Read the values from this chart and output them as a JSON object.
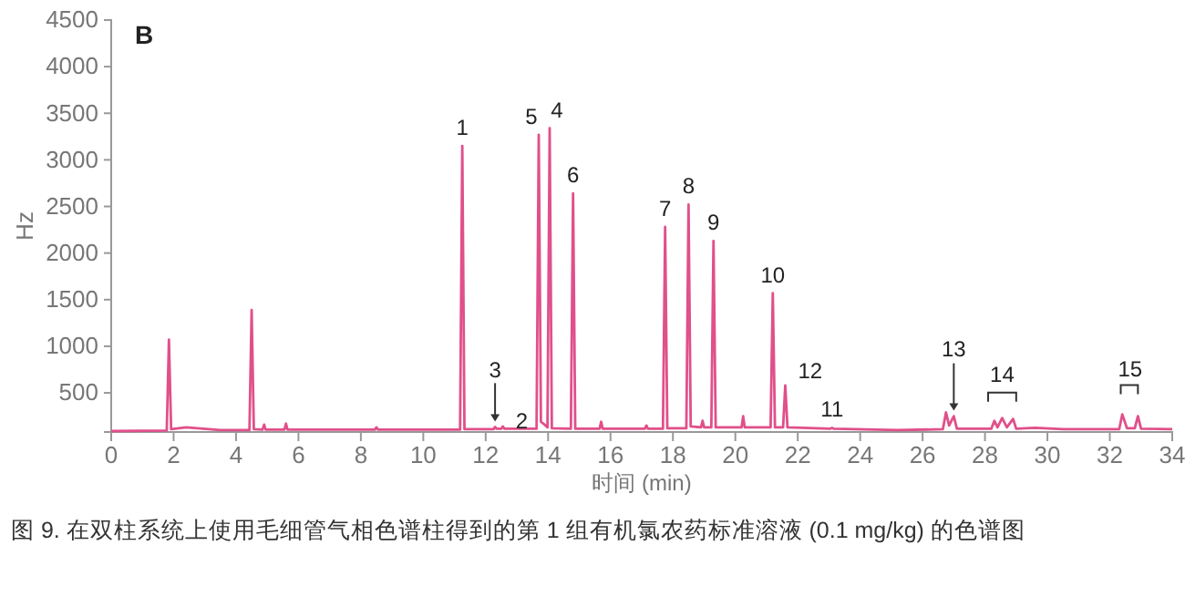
{
  "chart_data": {
    "type": "line",
    "title": "B",
    "xlabel": "时间 (min)",
    "ylabel": "Hz",
    "xlim": [
      0,
      34
    ],
    "xticks": [
      0,
      2,
      4,
      6,
      8,
      10,
      12,
      14,
      16,
      18,
      20,
      22,
      24,
      26,
      28,
      30,
      32,
      34
    ],
    "ylim": [
      80,
      4500
    ],
    "yticks": [
      500,
      1000,
      1500,
      2000,
      2500,
      3000,
      3500,
      4000,
      4500
    ],
    "marker": "none",
    "line_style": "solid",
    "series": [
      {
        "color": "#e0508a",
        "x": [
          0,
          1.78,
          1.85,
          1.92,
          2.4,
          3.5,
          4.43,
          4.5,
          4.57,
          4.85,
          4.9,
          4.95,
          5.55,
          5.6,
          5.65,
          8.45,
          8.5,
          8.55,
          11.18,
          11.25,
          11.32,
          12.25,
          12.3,
          12.35,
          12.5,
          12.55,
          12.6,
          13.63,
          13.7,
          13.77,
          13.85,
          13.98,
          14.05,
          14.12,
          14.73,
          14.8,
          14.87,
          15.65,
          15.7,
          15.75,
          17.1,
          17.15,
          17.2,
          17.68,
          17.75,
          17.82,
          18.43,
          18.5,
          18.57,
          18.9,
          18.95,
          19.0,
          19.23,
          19.3,
          19.37,
          20.2,
          20.25,
          20.3,
          21.13,
          21.2,
          21.27,
          21.53,
          21.6,
          21.67,
          23.05,
          23.1,
          23.15,
          25.2,
          26.65,
          26.75,
          26.85,
          27.0,
          27.1,
          28.2,
          28.3,
          28.4,
          28.55,
          28.7,
          28.9,
          29.0,
          29.6,
          30.5,
          32.3,
          32.4,
          32.55,
          32.8,
          32.9,
          33.0,
          34
        ],
        "values": [
          90,
          95,
          1070,
          110,
          130,
          100,
          100,
          1390,
          110,
          105,
          160,
          105,
          105,
          170,
          105,
          105,
          130,
          105,
          105,
          3150,
          110,
          110,
          135,
          115,
          115,
          140,
          115,
          115,
          3270,
          190,
          170,
          130,
          3340,
          120,
          115,
          2640,
          115,
          115,
          190,
          115,
          115,
          150,
          115,
          115,
          2280,
          120,
          120,
          2520,
          140,
          130,
          200,
          130,
          130,
          2130,
          130,
          130,
          250,
          130,
          130,
          1570,
          130,
          130,
          580,
          130,
          115,
          125,
          115,
          100,
          110,
          290,
          150,
          250,
          115,
          115,
          200,
          130,
          230,
          130,
          220,
          115,
          125,
          110,
          110,
          270,
          120,
          120,
          250,
          115,
          110
        ]
      }
    ],
    "annotations": [
      {
        "text": "1",
        "x": 11.25,
        "y": 3150
      },
      {
        "text": "2",
        "x": 12.55,
        "y": 140
      },
      {
        "text": "3",
        "x": 12.3,
        "y": 135
      },
      {
        "text": "5",
        "x": 13.7,
        "y": 3270
      },
      {
        "text": "4",
        "x": 14.05,
        "y": 3340
      },
      {
        "text": "6",
        "x": 14.8,
        "y": 2640
      },
      {
        "text": "7",
        "x": 17.75,
        "y": 2280
      },
      {
        "text": "8",
        "x": 18.5,
        "y": 2520
      },
      {
        "text": "9",
        "x": 19.3,
        "y": 2130
      },
      {
        "text": "10",
        "x": 21.2,
        "y": 1570
      },
      {
        "text": "12",
        "x": 21.6,
        "y": 580
      },
      {
        "text": "11",
        "x": 23.1,
        "y": 125
      },
      {
        "text": "13",
        "x": 27.0,
        "y": 250
      },
      {
        "text": "14",
        "x": 28.55,
        "y": 230
      },
      {
        "text": "15",
        "x": 32.65,
        "y": 270
      },
      "图 9. 在双柱系统上使用毛细管气相色谱柱得到的第 1 组有机氯农药标准溶液 (0.1 mg/kg) 的色谱图"
    ]
  }
}
